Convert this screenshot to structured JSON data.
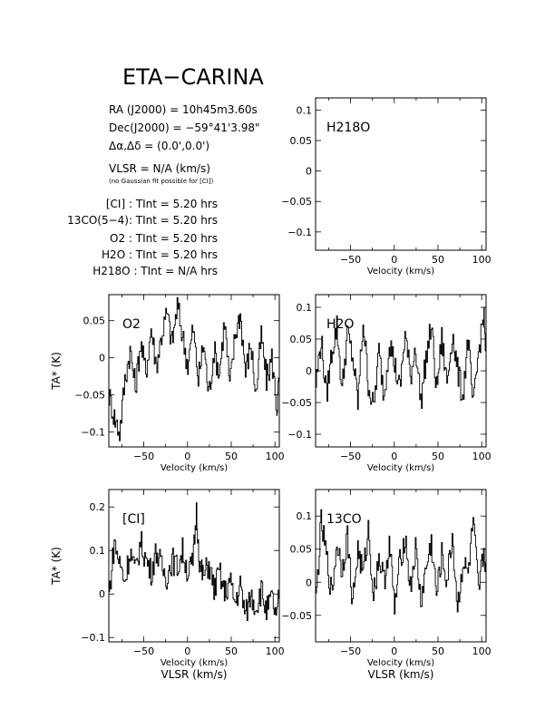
{
  "header": {
    "title": "ETA−CARINA",
    "ra": "RA (J2000) =  10h45m3.60s",
    "dec": "Dec(J2000) = −59°41'3.98\"",
    "offset": "Δα,Δδ = (0.0',0.0')",
    "vlsr": "VLSR  = N/A  (km/s)",
    "note": "(no Gaussian fit possible for [CI])",
    "integrations": [
      "[CI] : TInt = 5.20 hrs",
      "13CO(5−4): TInt = 5.20 hrs",
      "O2 : TInt = 5.20 hrs",
      "H2O : TInt = 5.20 hrs",
      "H218O : TInt = N/A  hrs"
    ]
  },
  "chart_data": [
    {
      "type": "line",
      "panel": "H218O",
      "label": "H218O",
      "xlabel": "Velocity (km/s)",
      "ylabel": "",
      "xlim": [
        -90,
        105
      ],
      "ylim": [
        -0.13,
        0.12
      ],
      "xticks": [
        -50,
        0,
        50,
        100
      ],
      "yticks": [
        -0.1,
        -0.05,
        0,
        0.05,
        0.1
      ],
      "ytick_labels": [
        "−0.1",
        "−0.05",
        "0",
        "0.05",
        "0.1"
      ],
      "x": [],
      "y": []
    },
    {
      "type": "line",
      "panel": "O2",
      "label": "O2",
      "xlabel": "Velocity (km/s)",
      "ylabel": "TA* (K)",
      "xlim": [
        -90,
        105
      ],
      "ylim": [
        -0.12,
        0.085
      ],
      "xticks": [
        -50,
        0,
        50,
        100
      ],
      "yticks": [
        -0.1,
        -0.05,
        0,
        0.05
      ],
      "ytick_labels": [
        "−0.1",
        "−0.05",
        "0",
        "0.05"
      ],
      "x": [
        -90,
        -84,
        -78,
        -72,
        -66,
        -60,
        -54,
        -48,
        -42,
        -36,
        -30,
        -24,
        -18,
        -12,
        -6,
        0,
        6,
        12,
        18,
        24,
        30,
        36,
        42,
        48,
        54,
        60,
        66,
        72,
        78,
        84,
        90,
        96,
        102,
        105
      ],
      "y": [
        -0.05,
        -0.08,
        -0.1,
        -0.03,
        0.01,
        -0.04,
        0.02,
        -0.02,
        0.04,
        -0.01,
        0.03,
        0.06,
        0.02,
        0.07,
        0.03,
        -0.01,
        0.04,
        -0.03,
        0.02,
        -0.05,
        0.01,
        -0.02,
        0.05,
        -0.04,
        0.03,
        0.06,
        -0.02,
        0.02,
        -0.05,
        0.03,
        -0.03,
        0.0,
        -0.07,
        -0.02
      ]
    },
    {
      "type": "line",
      "panel": "H2O",
      "label": "H2O",
      "xlabel": "Velocity (km/s)",
      "ylabel": "",
      "xlim": [
        -90,
        105
      ],
      "ylim": [
        -0.12,
        0.12
      ],
      "xticks": [
        -50,
        0,
        50,
        100
      ],
      "yticks": [
        -0.1,
        -0.05,
        0,
        0.05,
        0.1
      ],
      "ytick_labels": [
        "−0.1",
        "−0.05",
        "0",
        "0.05",
        "0.1"
      ],
      "x": [
        -90,
        -84,
        -78,
        -72,
        -66,
        -60,
        -54,
        -48,
        -42,
        -36,
        -30,
        -24,
        -18,
        -12,
        -6,
        0,
        6,
        12,
        18,
        24,
        30,
        36,
        42,
        48,
        54,
        60,
        66,
        72,
        78,
        84,
        90,
        96,
        102,
        105
      ],
      "y": [
        -0.02,
        0.05,
        -0.04,
        0.03,
        0.07,
        -0.03,
        0.06,
        0.02,
        -0.05,
        0.08,
        -0.02,
        -0.06,
        0.03,
        -0.04,
        0.05,
        0.01,
        -0.03,
        0.06,
        -0.01,
        0.04,
        -0.05,
        0.02,
        0.07,
        -0.03,
        0.05,
        -0.02,
        0.06,
        0.0,
        -0.04,
        0.05,
        -0.06,
        0.03,
        0.09,
        0.02
      ]
    },
    {
      "type": "line",
      "panel": "CI",
      "label": "[CI]",
      "xlabel": "Velocity (km/s)",
      "xlabel2": "VLSR (km/s)",
      "ylabel": "TA* (K)",
      "xlim": [
        -90,
        105
      ],
      "ylim": [
        -0.11,
        0.24
      ],
      "xticks": [
        -50,
        0,
        50,
        100
      ],
      "yticks": [
        -0.1,
        0,
        0.1,
        0.2
      ],
      "ytick_labels": [
        "−0.1",
        "0",
        "0.1",
        "0.2"
      ],
      "x": [
        -90,
        -84,
        -78,
        -72,
        -66,
        -60,
        -54,
        -48,
        -42,
        -36,
        -30,
        -24,
        -18,
        -12,
        -6,
        0,
        6,
        10,
        14,
        18,
        24,
        30,
        36,
        42,
        48,
        54,
        60,
        66,
        72,
        78,
        84,
        90,
        96,
        102,
        105
      ],
      "y": [
        0.0,
        0.12,
        0.07,
        0.03,
        0.1,
        0.05,
        0.12,
        0.08,
        0.05,
        0.1,
        0.06,
        0.04,
        0.08,
        0.06,
        0.1,
        0.05,
        0.07,
        0.19,
        0.06,
        0.04,
        0.07,
        0.01,
        0.05,
        0.0,
        0.03,
        -0.02,
        0.02,
        -0.05,
        0.0,
        -0.03,
        0.01,
        -0.04,
        -0.01,
        -0.06,
        0.02
      ]
    },
    {
      "type": "line",
      "panel": "13CO",
      "label": "13CO",
      "xlabel": "Velocity (km/s)",
      "xlabel2": "VLSR (km/s)",
      "ylabel": "",
      "xlim": [
        -90,
        105
      ],
      "ylim": [
        -0.09,
        0.14
      ],
      "xticks": [
        -50,
        0,
        50,
        100
      ],
      "yticks": [
        -0.05,
        0,
        0.05,
        0.1
      ],
      "ytick_labels": [
        "−0.05",
        "0",
        "0.05",
        "0.1"
      ],
      "x": [
        -90,
        -84,
        -78,
        -72,
        -66,
        -60,
        -54,
        -48,
        -42,
        -36,
        -30,
        -24,
        -18,
        -12,
        -6,
        0,
        6,
        12,
        18,
        24,
        30,
        36,
        42,
        48,
        54,
        60,
        66,
        72,
        78,
        84,
        90,
        96,
        102,
        105
      ],
      "y": [
        -0.03,
        0.09,
        0.04,
        -0.02,
        0.06,
        0.02,
        0.07,
        -0.03,
        0.05,
        0.01,
        0.08,
        -0.02,
        0.04,
        0.0,
        0.06,
        -0.04,
        0.03,
        0.07,
        -0.01,
        0.05,
        -0.03,
        0.02,
        0.06,
        -0.02,
        0.04,
        0.0,
        0.07,
        -0.04,
        0.03,
        0.01,
        0.09,
        -0.02,
        0.05,
        0.02
      ]
    }
  ]
}
